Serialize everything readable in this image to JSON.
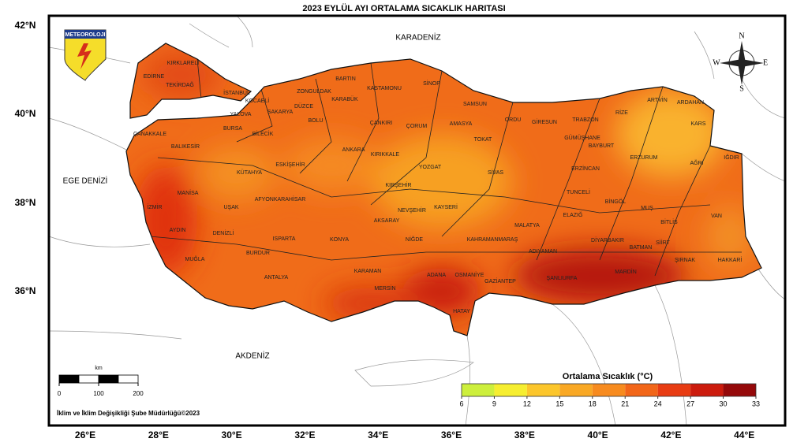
{
  "title": "2023 EYLÜL AYI ORTALAMA SICAKLIK HARITASI",
  "logo": "METEOROLOJI",
  "seas": [
    "KARADENİZ",
    "EGE DENİZİ",
    "AKDENİZ"
  ],
  "compass": [
    "N",
    "W",
    "E",
    "S"
  ],
  "provinces": [
    "KIRKLARELİ",
    "EDİRNE",
    "TEKİRDAĞ",
    "İSTANBUL",
    "KOCAELİ",
    "ZONGULDAK",
    "BARTIN",
    "KASTAMONU",
    "SİNOP",
    "KARABÜK",
    "SAKARYA",
    "DÜZCE",
    "YALOVA",
    "BOLU",
    "ÇANKIRI",
    "ÇORUM",
    "SAMSUN",
    "AMASYA",
    "ORDU",
    "GİRESUN",
    "TRABZON",
    "RİZE",
    "ARTVİN",
    "ARDAHAN",
    "KARS",
    "BURSA",
    "BİLECİK",
    "ÇANAKKALE",
    "BALIKESİR",
    "TOKAT",
    "GÜMÜŞHANE",
    "BAYBURT",
    "ERZURUM",
    "AĞRI",
    "IĞDIR",
    "ANKARA",
    "KIRIKKALE",
    "ESKİŞEHİR",
    "KÜTAHYA",
    "YOZGAT",
    "SİVAS",
    "ERZİNCAN",
    "MANİSA",
    "KIRŞEHİR",
    "TUNCELİ",
    "BİNGÖL",
    "MUŞ",
    "VAN",
    "UŞAK",
    "AFYONKARAHİSAR",
    "NEVŞEHİR",
    "KAYSERİ",
    "ELAZIĞ",
    "İZMİR",
    "AKSARAY",
    "MALATYA",
    "BİTLİS",
    "AYDIN",
    "DENİZLİ",
    "ISPARTA",
    "KONYA",
    "NİĞDE",
    "KAHRAMANMARAŞ",
    "DİYARBAKIR",
    "BATMAN",
    "SİİRT",
    "MUĞLA",
    "BURDUR",
    "ADIYAMAN",
    "ŞIRNAK",
    "HAKKARİ",
    "KARAMAN",
    "ADANA",
    "OSMANİYE",
    "GAZİANTEP",
    "ŞANLIURFA",
    "MARDİN",
    "ANTALYA",
    "MERSİN",
    "HATAY"
  ],
  "lat_labels": [
    "42°N",
    "40°N",
    "38°N",
    "36°N"
  ],
  "lon_labels": [
    "26°E",
    "28°E",
    "30°E",
    "32°E",
    "34°E",
    "36°E",
    "38°E",
    "40°E",
    "42°E",
    "44°E"
  ],
  "scale_bar": {
    "unit": "km",
    "ticks": [
      0,
      100,
      200
    ]
  },
  "legend": {
    "title": "Ortalama Sıcaklık (°C)",
    "ticks": [
      6,
      9,
      12,
      15,
      18,
      21,
      24,
      27,
      30,
      33
    ],
    "colors": [
      "#cdef3c",
      "#f6ee30",
      "#fcc62b",
      "#f9a824",
      "#f78b1f",
      "#f26619",
      "#e83c13",
      "#cc1b0d",
      "#95090a"
    ]
  },
  "credit": "İklim ve İklim Değişikliği Şube Müdürlüğü©2023"
}
